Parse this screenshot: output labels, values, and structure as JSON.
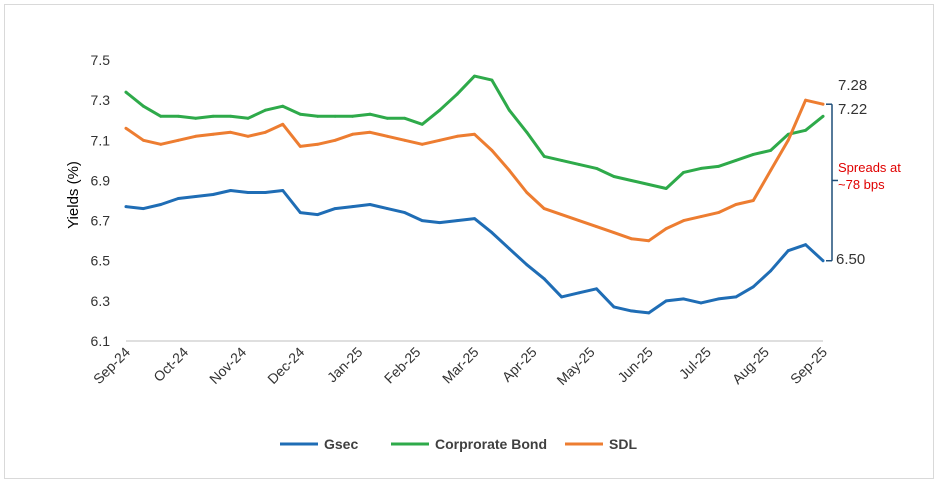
{
  "chart_data": {
    "type": "line",
    "ylabel": "Yields (%)",
    "xlabel": "",
    "ylim": [
      6.1,
      7.6
    ],
    "yticks": [
      "6.1",
      "6.3",
      "6.5",
      "6.7",
      "6.9",
      "7.1",
      "7.3",
      "7.5"
    ],
    "x_ticks": [
      "Sep-24",
      "Oct-24",
      "Nov-24",
      "Dec-24",
      "Jan-25",
      "Feb-25",
      "Mar-25",
      "Apr-25",
      "May-25",
      "Jun-25",
      "Jul-25",
      "Aug-25",
      "Sep-25"
    ],
    "grid": false,
    "legend_position": "bottom",
    "colors": {
      "Gsec": "#1f6db5",
      "Corprorate Bond": "#2eaa4a",
      "SDL": "#ed7d31",
      "bracket": "#1f4e79",
      "annotation": "#e00000"
    },
    "series": [
      {
        "name": "Gsec",
        "x": [
          0,
          0.3,
          0.6,
          0.9,
          1.2,
          1.5,
          1.8,
          2.1,
          2.4,
          2.7,
          3.0,
          3.3,
          3.6,
          3.9,
          4.2,
          4.5,
          4.8,
          5.1,
          5.4,
          5.7,
          6.0,
          6.3,
          6.6,
          6.9,
          7.2,
          7.5,
          7.8,
          8.1,
          8.4,
          8.7,
          9.0,
          9.3,
          9.6,
          9.9,
          10.2,
          10.5,
          10.8,
          11.1,
          11.4,
          11.7,
          12.0
        ],
        "values": [
          6.77,
          6.76,
          6.78,
          6.81,
          6.82,
          6.83,
          6.85,
          6.84,
          6.84,
          6.85,
          6.74,
          6.73,
          6.76,
          6.77,
          6.78,
          6.76,
          6.74,
          6.7,
          6.69,
          6.7,
          6.71,
          6.64,
          6.56,
          6.48,
          6.41,
          6.32,
          6.34,
          6.36,
          6.27,
          6.25,
          6.24,
          6.3,
          6.31,
          6.29,
          6.31,
          6.32,
          6.37,
          6.45,
          6.55,
          6.58,
          6.5
        ]
      },
      {
        "name": "Corprorate Bond",
        "x": [
          0,
          0.3,
          0.6,
          0.9,
          1.2,
          1.5,
          1.8,
          2.1,
          2.4,
          2.7,
          3.0,
          3.3,
          3.6,
          3.9,
          4.2,
          4.5,
          4.8,
          5.1,
          5.4,
          5.7,
          6.0,
          6.3,
          6.6,
          6.9,
          7.2,
          7.5,
          7.8,
          8.1,
          8.4,
          8.7,
          9.0,
          9.3,
          9.6,
          9.9,
          10.2,
          10.5,
          10.8,
          11.1,
          11.4,
          11.7,
          12.0
        ],
        "values": [
          7.34,
          7.27,
          7.22,
          7.22,
          7.21,
          7.22,
          7.22,
          7.21,
          7.25,
          7.27,
          7.23,
          7.22,
          7.22,
          7.22,
          7.23,
          7.21,
          7.21,
          7.18,
          7.25,
          7.33,
          7.42,
          7.4,
          7.25,
          7.14,
          7.02,
          7.0,
          6.98,
          6.96,
          6.92,
          6.9,
          6.88,
          6.86,
          6.94,
          6.96,
          6.97,
          7.0,
          7.03,
          7.05,
          7.13,
          7.15,
          7.22
        ]
      },
      {
        "name": "SDL",
        "x": [
          0,
          0.3,
          0.6,
          0.9,
          1.2,
          1.5,
          1.8,
          2.1,
          2.4,
          2.7,
          3.0,
          3.3,
          3.6,
          3.9,
          4.2,
          4.5,
          4.8,
          5.1,
          5.4,
          5.7,
          6.0,
          6.3,
          6.6,
          6.9,
          7.2,
          7.5,
          7.8,
          8.1,
          8.4,
          8.7,
          9.0,
          9.3,
          9.6,
          9.9,
          10.2,
          10.5,
          10.8,
          11.1,
          11.4,
          11.7,
          12.0
        ],
        "values": [
          7.16,
          7.1,
          7.08,
          7.1,
          7.12,
          7.13,
          7.14,
          7.12,
          7.14,
          7.18,
          7.07,
          7.08,
          7.1,
          7.13,
          7.14,
          7.12,
          7.1,
          7.08,
          7.1,
          7.12,
          7.13,
          7.05,
          6.95,
          6.84,
          6.76,
          6.73,
          6.7,
          6.67,
          6.64,
          6.61,
          6.6,
          6.66,
          6.7,
          6.72,
          6.74,
          6.78,
          6.8,
          6.95,
          7.1,
          7.3,
          7.28
        ]
      }
    ],
    "end_labels": {
      "gsec": "6.50",
      "corporate": "7.22",
      "sdl": "7.28"
    },
    "annotation": "Spreads at ~78 bps"
  }
}
